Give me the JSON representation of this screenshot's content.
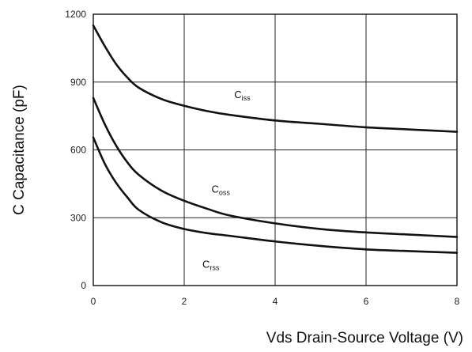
{
  "chart_data": {
    "type": "line",
    "xlabel": "Vds Drain-Source Voltage (V)",
    "ylabel": "C Capacitance (pF)",
    "xlim": [
      0,
      8
    ],
    "ylim": [
      0,
      1200
    ],
    "x_ticks": [
      0,
      2,
      4,
      6,
      8
    ],
    "y_ticks": [
      0,
      300,
      600,
      900,
      1200
    ],
    "grid": true,
    "series": [
      {
        "name": "Ciss",
        "label_main": "C",
        "label_sub": "iss",
        "x": [
          0,
          0.25,
          0.5,
          0.75,
          1,
          1.5,
          2,
          2.5,
          3,
          4,
          5,
          6,
          7,
          8
        ],
        "values": [
          1150,
          1060,
          980,
          920,
          875,
          825,
          795,
          772,
          755,
          730,
          715,
          700,
          690,
          680
        ]
      },
      {
        "name": "Coss",
        "label_main": "C",
        "label_sub": "oss",
        "x": [
          0,
          0.25,
          0.5,
          0.75,
          1,
          1.5,
          2,
          2.5,
          3,
          4,
          5,
          6,
          7,
          8
        ],
        "values": [
          830,
          715,
          620,
          545,
          490,
          420,
          375,
          340,
          310,
          275,
          250,
          235,
          225,
          215
        ]
      },
      {
        "name": "Crss",
        "label_main": "C",
        "label_sub": "rss",
        "x": [
          0,
          0.25,
          0.5,
          0.75,
          1,
          1.5,
          2,
          2.5,
          3,
          4,
          5,
          6,
          7,
          8
        ],
        "values": [
          655,
          540,
          455,
          390,
          335,
          280,
          250,
          232,
          220,
          195,
          175,
          160,
          152,
          145
        ]
      }
    ]
  }
}
